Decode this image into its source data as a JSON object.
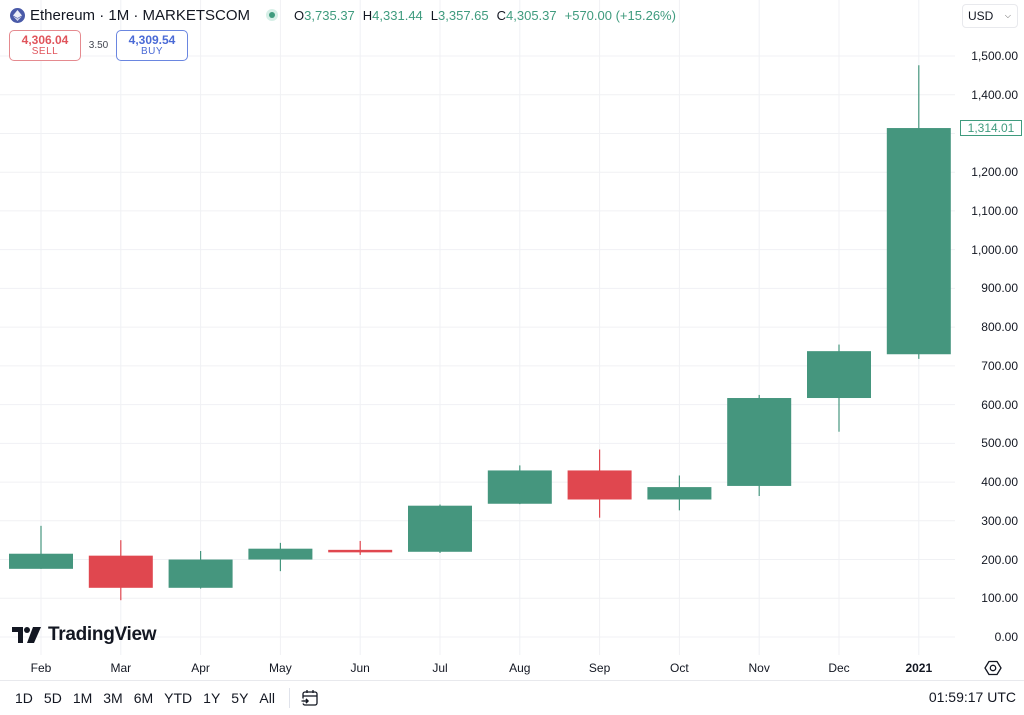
{
  "header": {
    "symbol": "Ethereum",
    "separator1": " · ",
    "interval": "1M",
    "separator2": " · ",
    "exchange": "MARKETSCOM",
    "title": "Ethereum · 1M · MARKETSCOM",
    "market_status": "open",
    "ohlc": {
      "open_key": "O",
      "open": "3,735.37",
      "high_key": "H",
      "high": "4,331.44",
      "low_key": "L",
      "low": "3,357.65",
      "close_key": "C",
      "close": "4,305.37",
      "change": "+570.00 (+15.26%)"
    }
  },
  "trade": {
    "sell_price": "4,306.04",
    "sell_label": "SELL",
    "spread": "3.50",
    "buy_price": "4,309.54",
    "buy_label": "BUY"
  },
  "currency": {
    "value": "USD",
    "icon": "chevron-down-icon"
  },
  "last_price_tag": "1,314.01",
  "branding": {
    "logo_text": "TradingView"
  },
  "time_axis": {
    "labels": [
      "Feb",
      "Mar",
      "Apr",
      "May",
      "Jun",
      "Jul",
      "Aug",
      "Sep",
      "Oct",
      "Nov",
      "Dec",
      "2021"
    ]
  },
  "price_axis": {
    "labels": [
      "1,500.00",
      "1,400.00",
      "1,200.00",
      "1,100.00",
      "1,000.00",
      "900.00",
      "800.00",
      "700.00",
      "600.00",
      "500.00",
      "400.00",
      "300.00",
      "200.00",
      "100.00",
      "0.00"
    ]
  },
  "footer": {
    "timeframes": [
      "1D",
      "5D",
      "1M",
      "3M",
      "6M",
      "YTD",
      "1Y",
      "5Y",
      "All"
    ],
    "clock": "01:59:17 UTC"
  },
  "colors": {
    "up": "#45967e",
    "down": "#e0474f",
    "grid": "#f0f1f4",
    "accent_green": "#3f9b7e",
    "sell": "#e0545b",
    "buy": "#4a6ad6"
  },
  "chart_data": {
    "type": "candlestick",
    "title": "Ethereum · 1M · MARKETSCOM",
    "xlabel": "",
    "ylabel": "USD",
    "ylim": [
      0,
      1500
    ],
    "grid": true,
    "categories": [
      "Feb",
      "Mar",
      "Apr",
      "May",
      "Jun",
      "Jul",
      "Aug",
      "Sep",
      "Oct",
      "Nov",
      "Dec",
      "2021"
    ],
    "series": [
      {
        "name": "open",
        "values": [
          176,
          210,
          127,
          200,
          225,
          220,
          344,
          430,
          355,
          390,
          617,
          730
        ]
      },
      {
        "name": "high",
        "values": [
          287,
          250,
          222,
          243,
          248,
          342,
          443,
          484,
          417,
          625,
          755,
          1476
        ]
      },
      {
        "name": "low",
        "values": [
          176,
          95,
          125,
          170,
          212,
          217,
          343,
          308,
          327,
          364,
          530,
          718
        ]
      },
      {
        "name": "close",
        "values": [
          215,
          127,
          200,
          228,
          220,
          339,
          430,
          355,
          387,
          617,
          738,
          1314
        ]
      }
    ],
    "yticks": [
      0,
      100,
      200,
      300,
      400,
      500,
      600,
      700,
      800,
      900,
      1000,
      1100,
      1200,
      1300,
      1400,
      1500
    ],
    "last_price": 1314.01
  }
}
